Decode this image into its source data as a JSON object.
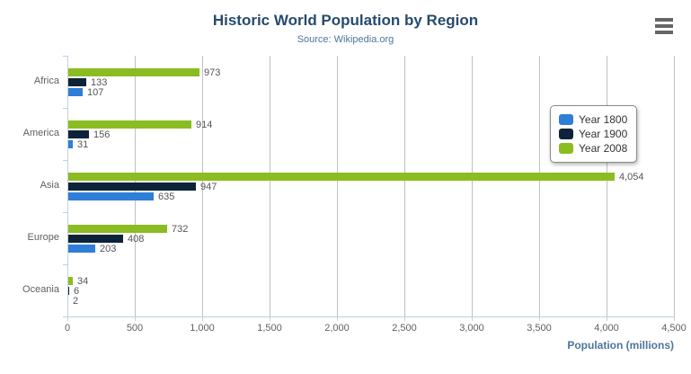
{
  "chart_data": {
    "type": "bar",
    "orientation": "horizontal",
    "title": "Historic World Population by Region",
    "subtitle": "Source: Wikipedia.org",
    "xlabel": "Population (millions)",
    "ylabel": "",
    "categories": [
      "Africa",
      "America",
      "Asia",
      "Europe",
      "Oceania"
    ],
    "series": [
      {
        "name": "Year 1800",
        "color": "#2f7ed8",
        "values": [
          107,
          31,
          635,
          203,
          2
        ]
      },
      {
        "name": "Year 1900",
        "color": "#0d233a",
        "values": [
          133,
          156,
          947,
          408,
          6
        ]
      },
      {
        "name": "Year 2008",
        "color": "#8bbc21",
        "values": [
          973,
          914,
          4054,
          732,
          34
        ]
      }
    ],
    "bar_order_top_to_bottom": [
      "Year 2008",
      "Year 1900",
      "Year 1800"
    ],
    "xlim": [
      0,
      4500
    ],
    "xticks": [
      0,
      500,
      1000,
      1500,
      2000,
      2500,
      3000,
      3500,
      4000,
      4500
    ],
    "xtick_labels": [
      "0",
      "500",
      "1,000",
      "1,500",
      "2,000",
      "2,500",
      "3,000",
      "3,500",
      "4,000",
      "4,500"
    ],
    "grid": "vertical-only",
    "legend_position": "right-upper",
    "data_labels_shown": true
  },
  "icons": {
    "context_menu": "hamburger-icon"
  },
  "colors": {
    "title": "#274b6d",
    "subtitle": "#4d759e",
    "axis_title": "#4d759e",
    "axis_labels": "#606060",
    "data_labels": "#555555",
    "gridline": "#C0C0C0",
    "axis_line": "#C0D0E0",
    "menu_icon": "#666666",
    "legend_border": "#8a8a8a",
    "legend_text": "#333333"
  }
}
